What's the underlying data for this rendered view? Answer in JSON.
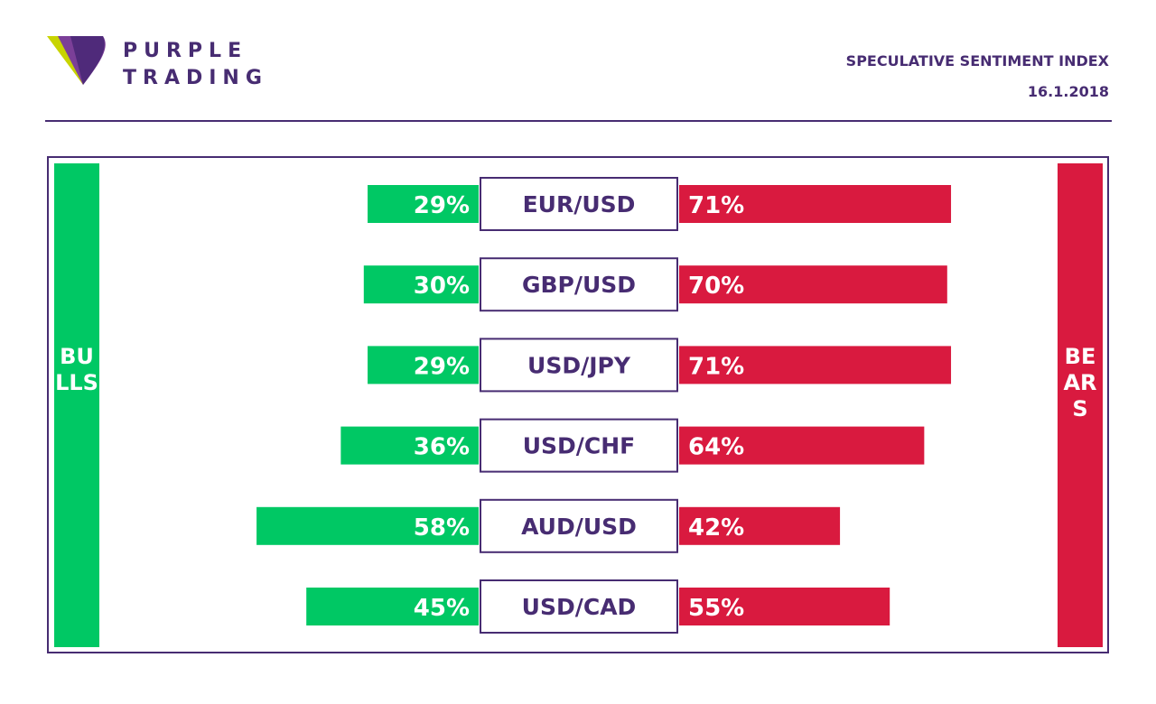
{
  "brand": {
    "line1": "PURPLE",
    "line2": "TRADING"
  },
  "report": {
    "title": "SPECULATIVE SENTIMENT INDEX",
    "date": "16.1.2018"
  },
  "colors": {
    "purple": "#472c72",
    "bull": "#00c864",
    "bear": "#d91a3f",
    "logo_accent": "#c8d400"
  },
  "chart_data": {
    "type": "bar",
    "categories": [
      "EUR/USD",
      "GBP/USD",
      "USD/JPY",
      "USD/CHF",
      "AUD/USD",
      "USD/CAD"
    ],
    "series": [
      {
        "name": "BULLS",
        "values": [
          29,
          30,
          29,
          36,
          58,
          45
        ],
        "labels": [
          "29%",
          "30%",
          "29%",
          "36%",
          "58%",
          "45%"
        ]
      },
      {
        "name": "BEARS",
        "values": [
          71,
          70,
          71,
          64,
          42,
          55
        ],
        "labels": [
          "71%",
          "70%",
          "71%",
          "64%",
          "42%",
          "55%"
        ]
      }
    ]
  }
}
